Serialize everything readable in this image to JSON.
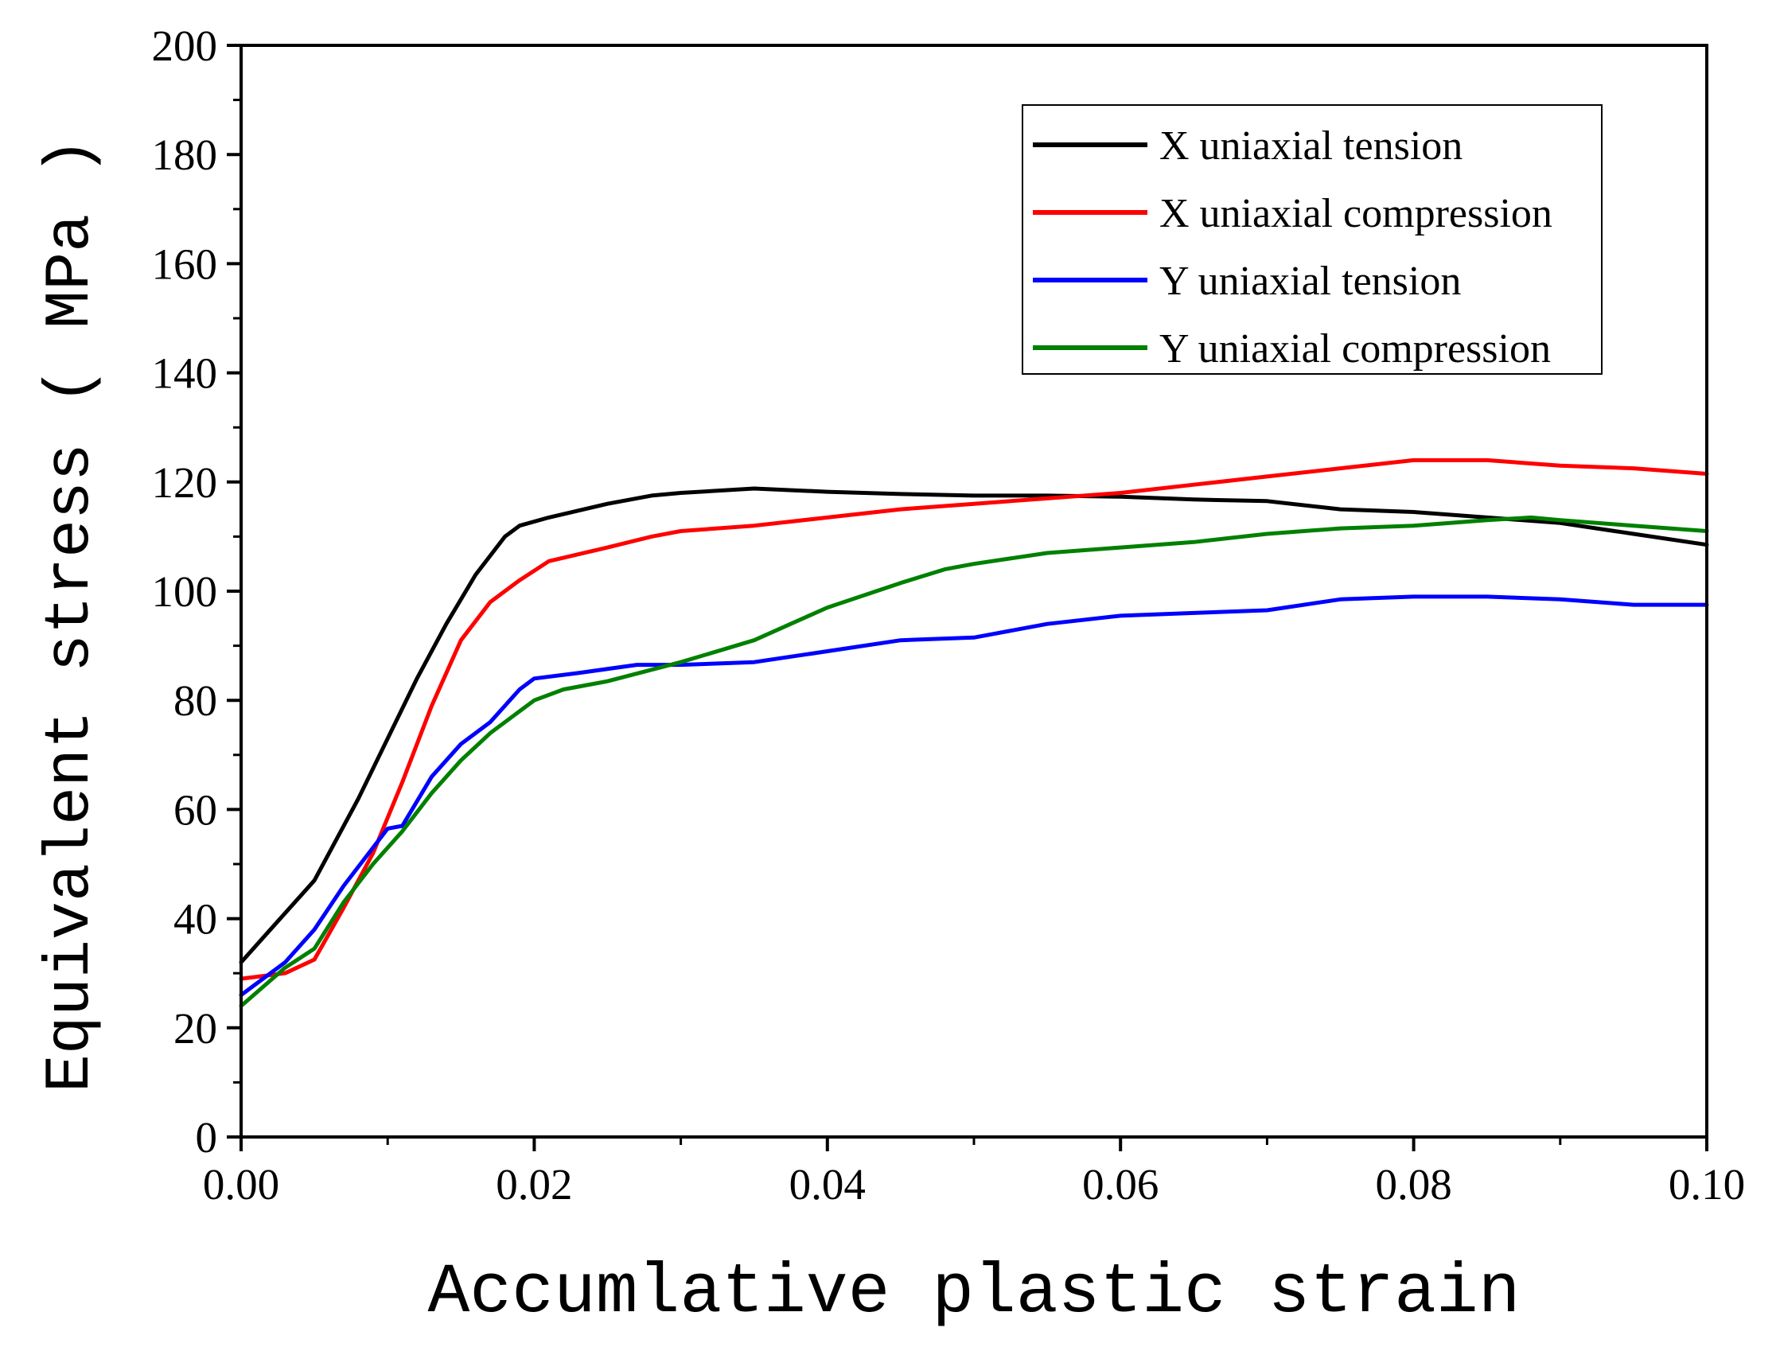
{
  "chart_data": {
    "type": "line",
    "title": "",
    "xlabel": "Accumlative plastic strain",
    "ylabel": "Equivalent stress ( MPa )",
    "xlim": [
      0,
      0.1
    ],
    "ylim": [
      0,
      200
    ],
    "x_ticks": [
      "0.00",
      "0.02",
      "0.04",
      "0.06",
      "0.08",
      "0.10"
    ],
    "y_ticks": [
      "0",
      "20",
      "40",
      "60",
      "80",
      "100",
      "120",
      "140",
      "160",
      "180",
      "200"
    ],
    "grid": false,
    "legend_position": "top-right",
    "series": [
      {
        "name": "X uniaxial tension",
        "color": "#000000",
        "x": [
          0,
          0.002,
          0.005,
          0.008,
          0.01,
          0.012,
          0.014,
          0.016,
          0.018,
          0.019,
          0.021,
          0.025,
          0.028,
          0.03,
          0.035,
          0.04,
          0.045,
          0.05,
          0.055,
          0.06,
          0.065,
          0.07,
          0.075,
          0.08,
          0.085,
          0.09,
          0.095,
          0.1
        ],
        "y": [
          32,
          38,
          47,
          62,
          73,
          84,
          94,
          103,
          110,
          112,
          113.5,
          116,
          117.5,
          118,
          118.8,
          118.2,
          117.8,
          117.5,
          117.5,
          117.3,
          116.8,
          116.5,
          115,
          114.5,
          113.5,
          112.5,
          110.5,
          108.5
        ]
      },
      {
        "name": "X uniaxial compression",
        "color": "#ff0000",
        "x": [
          0,
          0.003,
          0.005,
          0.007,
          0.009,
          0.011,
          0.013,
          0.015,
          0.017,
          0.019,
          0.021,
          0.025,
          0.028,
          0.03,
          0.035,
          0.04,
          0.045,
          0.05,
          0.055,
          0.06,
          0.065,
          0.07,
          0.075,
          0.08,
          0.085,
          0.09,
          0.095,
          0.1
        ],
        "y": [
          29,
          30,
          32.5,
          42,
          52,
          65,
          79,
          91,
          98,
          102,
          105.5,
          108,
          110,
          111,
          112,
          113.5,
          115,
          116,
          117,
          118,
          119.5,
          121,
          122.5,
          124,
          124,
          123,
          122.5,
          121.5
        ]
      },
      {
        "name": "Y uniaxial tension",
        "color": "#0000ff",
        "x": [
          0,
          0.003,
          0.005,
          0.007,
          0.009,
          0.01,
          0.011,
          0.013,
          0.015,
          0.017,
          0.019,
          0.02,
          0.023,
          0.027,
          0.03,
          0.035,
          0.04,
          0.045,
          0.05,
          0.055,
          0.06,
          0.065,
          0.07,
          0.075,
          0.08,
          0.085,
          0.09,
          0.095,
          0.1
        ],
        "y": [
          26,
          32,
          38,
          46,
          53,
          56.5,
          57,
          66,
          72,
          76,
          82,
          84,
          85,
          86.5,
          86.5,
          87,
          89,
          91,
          91.5,
          94,
          95.5,
          96,
          96.5,
          98.5,
          99,
          99,
          98.5,
          97.5,
          97.5
        ]
      },
      {
        "name": "Y uniaxial compression",
        "color": "#008000",
        "x": [
          0,
          0.003,
          0.005,
          0.007,
          0.009,
          0.011,
          0.013,
          0.015,
          0.017,
          0.019,
          0.02,
          0.022,
          0.025,
          0.03,
          0.035,
          0.04,
          0.045,
          0.048,
          0.05,
          0.055,
          0.06,
          0.065,
          0.07,
          0.075,
          0.08,
          0.085,
          0.088,
          0.09,
          0.095,
          0.1
        ],
        "y": [
          24,
          31,
          34.5,
          43,
          50,
          56,
          63,
          69,
          74,
          78,
          80,
          82,
          83.5,
          87,
          91,
          97,
          101.5,
          104,
          105,
          107,
          108,
          109,
          110.5,
          111.5,
          112,
          113,
          113.5,
          113,
          112,
          111
        ]
      }
    ]
  }
}
